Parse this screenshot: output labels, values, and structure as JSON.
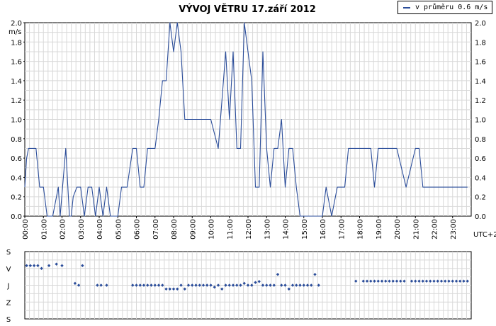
{
  "chart_data": [
    {
      "type": "line",
      "title": "VÝVOJ VĚTRU  17.září 2012",
      "ylabel": "m/s",
      "xlabel": "UTC+2",
      "ylim": [
        0,
        2.0
      ],
      "y_ticks": [
        "0.0",
        "0.2",
        "0.4",
        "0.6",
        "0.8",
        "1.0",
        "1.2",
        "1.4",
        "1.6",
        "1.8",
        "2.0"
      ],
      "x_ticks": [
        "00:00",
        "01:00",
        "02:00",
        "03:00",
        "04:00",
        "05:00",
        "06:00",
        "07:00",
        "08:00",
        "09:00",
        "10:00",
        "11:00",
        "12:00",
        "13:00",
        "14:00",
        "15:00",
        "16:00",
        "17:00",
        "18:00",
        "19:00",
        "20:00",
        "21:00",
        "22:00",
        "23:00"
      ],
      "grid": true,
      "legend": "top-right",
      "color": "#2b4d9a",
      "series": [
        {
          "name": "v průměru 0.6 m/s",
          "x": [
            0.0,
            0.1,
            0.2,
            0.6,
            0.8,
            1.0,
            1.2,
            1.5,
            1.8,
            1.9,
            2.2,
            2.4,
            2.5,
            2.6,
            2.8,
            3.0,
            3.2,
            3.4,
            3.6,
            3.8,
            4.0,
            4.2,
            4.4,
            4.6,
            4.8,
            5.0,
            5.2,
            5.5,
            5.8,
            6.0,
            6.2,
            6.4,
            6.6,
            6.8,
            7.0,
            7.2,
            7.4,
            7.6,
            7.8,
            8.0,
            8.2,
            8.4,
            8.6,
            8.8,
            9.0,
            9.2,
            9.4,
            9.6,
            10.0,
            10.4,
            10.8,
            11.0,
            11.2,
            11.4,
            11.6,
            11.8,
            12.0,
            12.2,
            12.4,
            12.6,
            12.8,
            13.0,
            13.2,
            13.4,
            13.6,
            13.8,
            14.0,
            14.2,
            14.4,
            14.6,
            14.8,
            15.0,
            15.2,
            15.4,
            15.6,
            15.8,
            16.0,
            16.2,
            16.5,
            16.8,
            17.0,
            17.2,
            17.4,
            17.6,
            17.8,
            18.0,
            18.2,
            18.4,
            18.6,
            18.8,
            19.0,
            19.5,
            20.0,
            20.5,
            21.0,
            21.2,
            21.4,
            21.6,
            21.8,
            22.0,
            22.2,
            22.4,
            22.6,
            22.8,
            23.0,
            23.2,
            23.4,
            23.8
          ],
          "y": [
            0.3,
            0.6,
            0.7,
            0.7,
            0.3,
            0.3,
            0.0,
            0.0,
            0.3,
            0.0,
            0.7,
            0.0,
            0.0,
            0.2,
            0.3,
            0.3,
            0.0,
            0.3,
            0.3,
            0.0,
            0.3,
            0.0,
            0.3,
            0.0,
            0.0,
            0.0,
            0.3,
            0.3,
            0.7,
            0.7,
            0.3,
            0.3,
            0.7,
            0.7,
            0.7,
            1.0,
            1.4,
            1.4,
            2.0,
            1.7,
            2.0,
            1.7,
            1.0,
            1.0,
            1.0,
            1.0,
            1.0,
            1.0,
            1.0,
            0.7,
            1.7,
            1.0,
            1.7,
            0.7,
            0.7,
            2.0,
            1.7,
            1.4,
            0.3,
            0.3,
            1.7,
            0.7,
            0.3,
            0.7,
            0.7,
            1.0,
            0.3,
            0.7,
            0.7,
            0.3,
            0.0,
            0.0,
            0.0,
            0.0,
            0.0,
            0.0,
            0.0,
            0.3,
            0.0,
            0.3,
            0.3,
            0.3,
            0.7,
            0.7,
            0.7,
            0.7,
            0.7,
            0.7,
            0.7,
            0.3,
            0.7,
            0.7,
            0.7,
            0.3,
            0.7,
            0.7,
            0.3,
            0.3,
            0.3,
            0.3,
            0.3,
            0.3,
            0.3,
            0.3,
            0.3,
            0.3,
            0.3,
            0.3
          ]
        }
      ]
    },
    {
      "type": "scatter",
      "y_ticks": [
        "S",
        "V",
        "J",
        "Z",
        "S"
      ],
      "grid": true,
      "color": "#2b4d9a",
      "x": [
        0.1,
        0.3,
        0.5,
        0.7,
        0.9,
        1.3,
        1.7,
        2.0,
        2.7,
        2.9,
        3.1,
        3.9,
        4.1,
        4.4,
        5.8,
        6.0,
        6.2,
        6.4,
        6.6,
        6.8,
        7.0,
        7.2,
        7.4,
        7.6,
        7.8,
        8.0,
        8.2,
        8.4,
        8.6,
        8.8,
        9.0,
        9.2,
        9.4,
        9.6,
        9.8,
        10.0,
        10.2,
        10.4,
        10.6,
        10.8,
        11.0,
        11.2,
        11.4,
        11.6,
        11.8,
        12.0,
        12.2,
        12.4,
        12.6,
        12.8,
        13.0,
        13.2,
        13.4,
        13.6,
        13.8,
        14.0,
        14.2,
        14.4,
        14.6,
        14.8,
        15.0,
        15.2,
        15.4,
        15.6,
        15.8,
        17.8,
        18.2,
        18.4,
        18.6,
        18.8,
        19.0,
        19.2,
        19.4,
        19.6,
        19.8,
        20.0,
        20.2,
        20.4,
        20.8,
        21.0,
        21.2,
        21.4,
        21.6,
        21.8,
        22.0,
        22.2,
        22.4,
        22.6,
        22.8,
        23.0,
        23.2,
        23.4,
        23.6,
        23.8
      ],
      "y": [
        75,
        75,
        75,
        75,
        90,
        75,
        67,
        75,
        170,
        180,
        75,
        180,
        180,
        180,
        180,
        180,
        180,
        180,
        180,
        180,
        180,
        180,
        180,
        200,
        200,
        200,
        200,
        180,
        200,
        180,
        180,
        180,
        180,
        180,
        180,
        180,
        190,
        180,
        200,
        180,
        180,
        180,
        180,
        180,
        170,
        180,
        180,
        165,
        160,
        180,
        180,
        180,
        180,
        122,
        180,
        180,
        200,
        180,
        180,
        180,
        180,
        180,
        180,
        122,
        180,
        158,
        158,
        158,
        158,
        158,
        158,
        158,
        158,
        158,
        158,
        158,
        158,
        158,
        158,
        158,
        158,
        158,
        158,
        158,
        158,
        158,
        158,
        158,
        158,
        158,
        158,
        158,
        158,
        158
      ]
    }
  ]
}
